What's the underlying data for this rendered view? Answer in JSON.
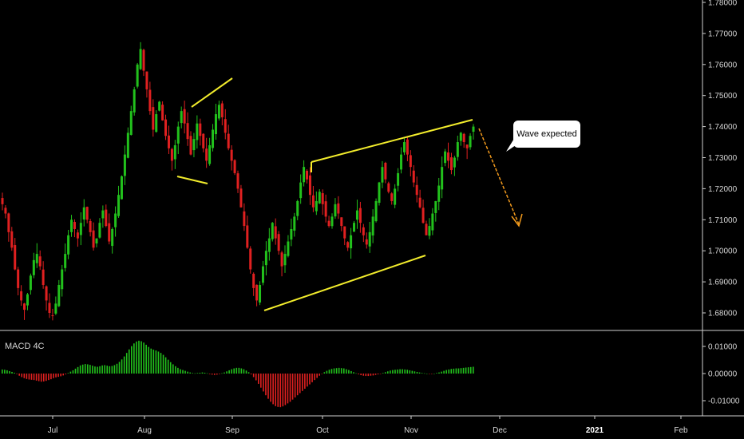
{
  "chart_data": [
    {
      "type": "candlestick",
      "title": "",
      "ylim": [
        1.675,
        1.785
      ],
      "y_ticks": [
        "1.78000",
        "1.77000",
        "1.76000",
        "1.75000",
        "1.74000",
        "1.73000",
        "1.72000",
        "1.71000",
        "1.70000",
        "1.69000",
        "1.68000"
      ],
      "x_ticks": [
        "Jul",
        "Aug",
        "Sep",
        "Oct",
        "Nov",
        "Dec",
        "2021",
        "Feb"
      ],
      "annotation_text": "Wave expected",
      "grid": false,
      "colors": {
        "up": "#22c11c",
        "down": "#e02020",
        "trendline": "#f2ec2c",
        "arrow": "#f29a1c"
      },
      "close_series": [
        1.715,
        1.712,
        1.706,
        1.701,
        1.694,
        1.688,
        1.684,
        1.681,
        1.686,
        1.692,
        1.697,
        1.699,
        1.695,
        1.689,
        1.684,
        1.68,
        1.679,
        1.683,
        1.689,
        1.694,
        1.699,
        1.705,
        1.71,
        1.707,
        1.704,
        1.709,
        1.714,
        1.71,
        1.706,
        1.701,
        1.704,
        1.709,
        1.713,
        1.708,
        1.703,
        1.707,
        1.712,
        1.718,
        1.724,
        1.731,
        1.738,
        1.745,
        1.752,
        1.76,
        1.765,
        1.758,
        1.752,
        1.745,
        1.739,
        1.744,
        1.748,
        1.742,
        1.737,
        1.733,
        1.729,
        1.734,
        1.74,
        1.745,
        1.741,
        1.736,
        1.731,
        1.736,
        1.741,
        1.737,
        1.733,
        1.729,
        1.734,
        1.739,
        1.744,
        1.747,
        1.743,
        1.738,
        1.733,
        1.729,
        1.725,
        1.72,
        1.714,
        1.708,
        1.701,
        1.694,
        1.688,
        1.684,
        1.689,
        1.695,
        1.7,
        1.704,
        1.709,
        1.704,
        1.7,
        1.695,
        1.699,
        1.703,
        1.707,
        1.711,
        1.716,
        1.722,
        1.727,
        1.723,
        1.718,
        1.714,
        1.716,
        1.719,
        1.715,
        1.711,
        1.708,
        1.711,
        1.715,
        1.712,
        1.708,
        1.704,
        1.701,
        1.705,
        1.709,
        1.713,
        1.709,
        1.705,
        1.702,
        1.706,
        1.711,
        1.716,
        1.722,
        1.727,
        1.723,
        1.719,
        1.716,
        1.72,
        1.725,
        1.731,
        1.735,
        1.731,
        1.727,
        1.722,
        1.718,
        1.714,
        1.709,
        1.705,
        1.708,
        1.712,
        1.716,
        1.721,
        1.727,
        1.732,
        1.729,
        1.726,
        1.73,
        1.735,
        1.738,
        1.735,
        1.733,
        1.737,
        1.74
      ]
    },
    {
      "type": "bar",
      "title": "MACD 4C",
      "ylim": [
        -0.0145,
        0.0145
      ],
      "y_ticks": [
        "0.01000",
        "0.00000",
        "-0.01000"
      ],
      "colors": {
        "positive": "#22c11c",
        "negative": "#e02020"
      },
      "values": [
        0.0015,
        0.0014,
        0.0012,
        0.0009,
        0.0006,
        0.0003,
        -0.0002,
        -0.0008,
        -0.0013,
        -0.0017,
        -0.002,
        -0.0022,
        -0.0023,
        -0.0024,
        -0.0026,
        -0.0028,
        -0.003,
        -0.0029,
        -0.0027,
        -0.0024,
        -0.0021,
        -0.0017,
        -0.0014,
        -0.0012,
        -0.001,
        -0.0007,
        -0.0003,
        0.0002,
        0.0007,
        0.0012,
        0.0018,
        0.0024,
        0.003,
        0.0033,
        0.0035,
        0.0034,
        0.0032,
        0.0029,
        0.0026,
        0.0025,
        0.0027,
        0.003,
        0.0031,
        0.0029,
        0.0027,
        0.0028,
        0.0031,
        0.0036,
        0.0043,
        0.0052,
        0.0063,
        0.0076,
        0.0089,
        0.0101,
        0.0111,
        0.0118,
        0.0121,
        0.0119,
        0.0114,
        0.0106,
        0.0098,
        0.0092,
        0.0088,
        0.0085,
        0.0081,
        0.0076,
        0.0069,
        0.006,
        0.0051,
        0.0042,
        0.0034,
        0.0027,
        0.0021,
        0.0016,
        0.0013,
        0.001,
        0.0007,
        0.0004,
        0.0002,
        0.0001,
        0.0002,
        0.0003,
        0.0004,
        0.0003,
        0.0001,
        -0.0002,
        -0.0004,
        -0.0005,
        -0.0004,
        -0.0002,
        0.0001,
        0.0004,
        0.0008,
        0.0012,
        0.0016,
        0.0019,
        0.0021,
        0.0021,
        0.0019,
        0.0016,
        0.0011,
        0.0005,
        -0.0003,
        -0.0013,
        -0.0025,
        -0.0038,
        -0.0052,
        -0.0066,
        -0.008,
        -0.0093,
        -0.0104,
        -0.0113,
        -0.012,
        -0.0123,
        -0.0124,
        -0.0121,
        -0.0116,
        -0.011,
        -0.0104,
        -0.0096,
        -0.0088,
        -0.008,
        -0.0072,
        -0.0064,
        -0.0056,
        -0.0048,
        -0.004,
        -0.0032,
        -0.0024,
        -0.0016,
        -0.0008,
        -0.0001,
        0.0005,
        0.001,
        0.0014,
        0.0017,
        0.0019,
        0.002,
        0.0021,
        0.002,
        0.0019,
        0.0016,
        0.0013,
        0.0009,
        0.0005,
        0.0001,
        -0.0003,
        -0.0006,
        -0.0008,
        -0.0009,
        -0.0009,
        -0.0008,
        -0.0007,
        -0.0005,
        -0.0003,
        -0.0001,
        0.0002,
        0.0005,
        0.0008,
        0.0011,
        0.0013,
        0.0014,
        0.0015,
        0.0016,
        0.0016,
        0.0015,
        0.0014,
        0.0012,
        0.001,
        0.0008,
        0.0006,
        0.0004,
        0.0002,
        0.0001,
        0.0,
        -0.0001,
        -0.0001,
        0.0,
        0.0002,
        0.0004,
        0.0007,
        0.001,
        0.0013,
        0.0015,
        0.0017,
        0.0018,
        0.0019,
        0.0019,
        0.002,
        0.0021,
        0.0022,
        0.0023,
        0.0024,
        0.0025
      ]
    }
  ]
}
